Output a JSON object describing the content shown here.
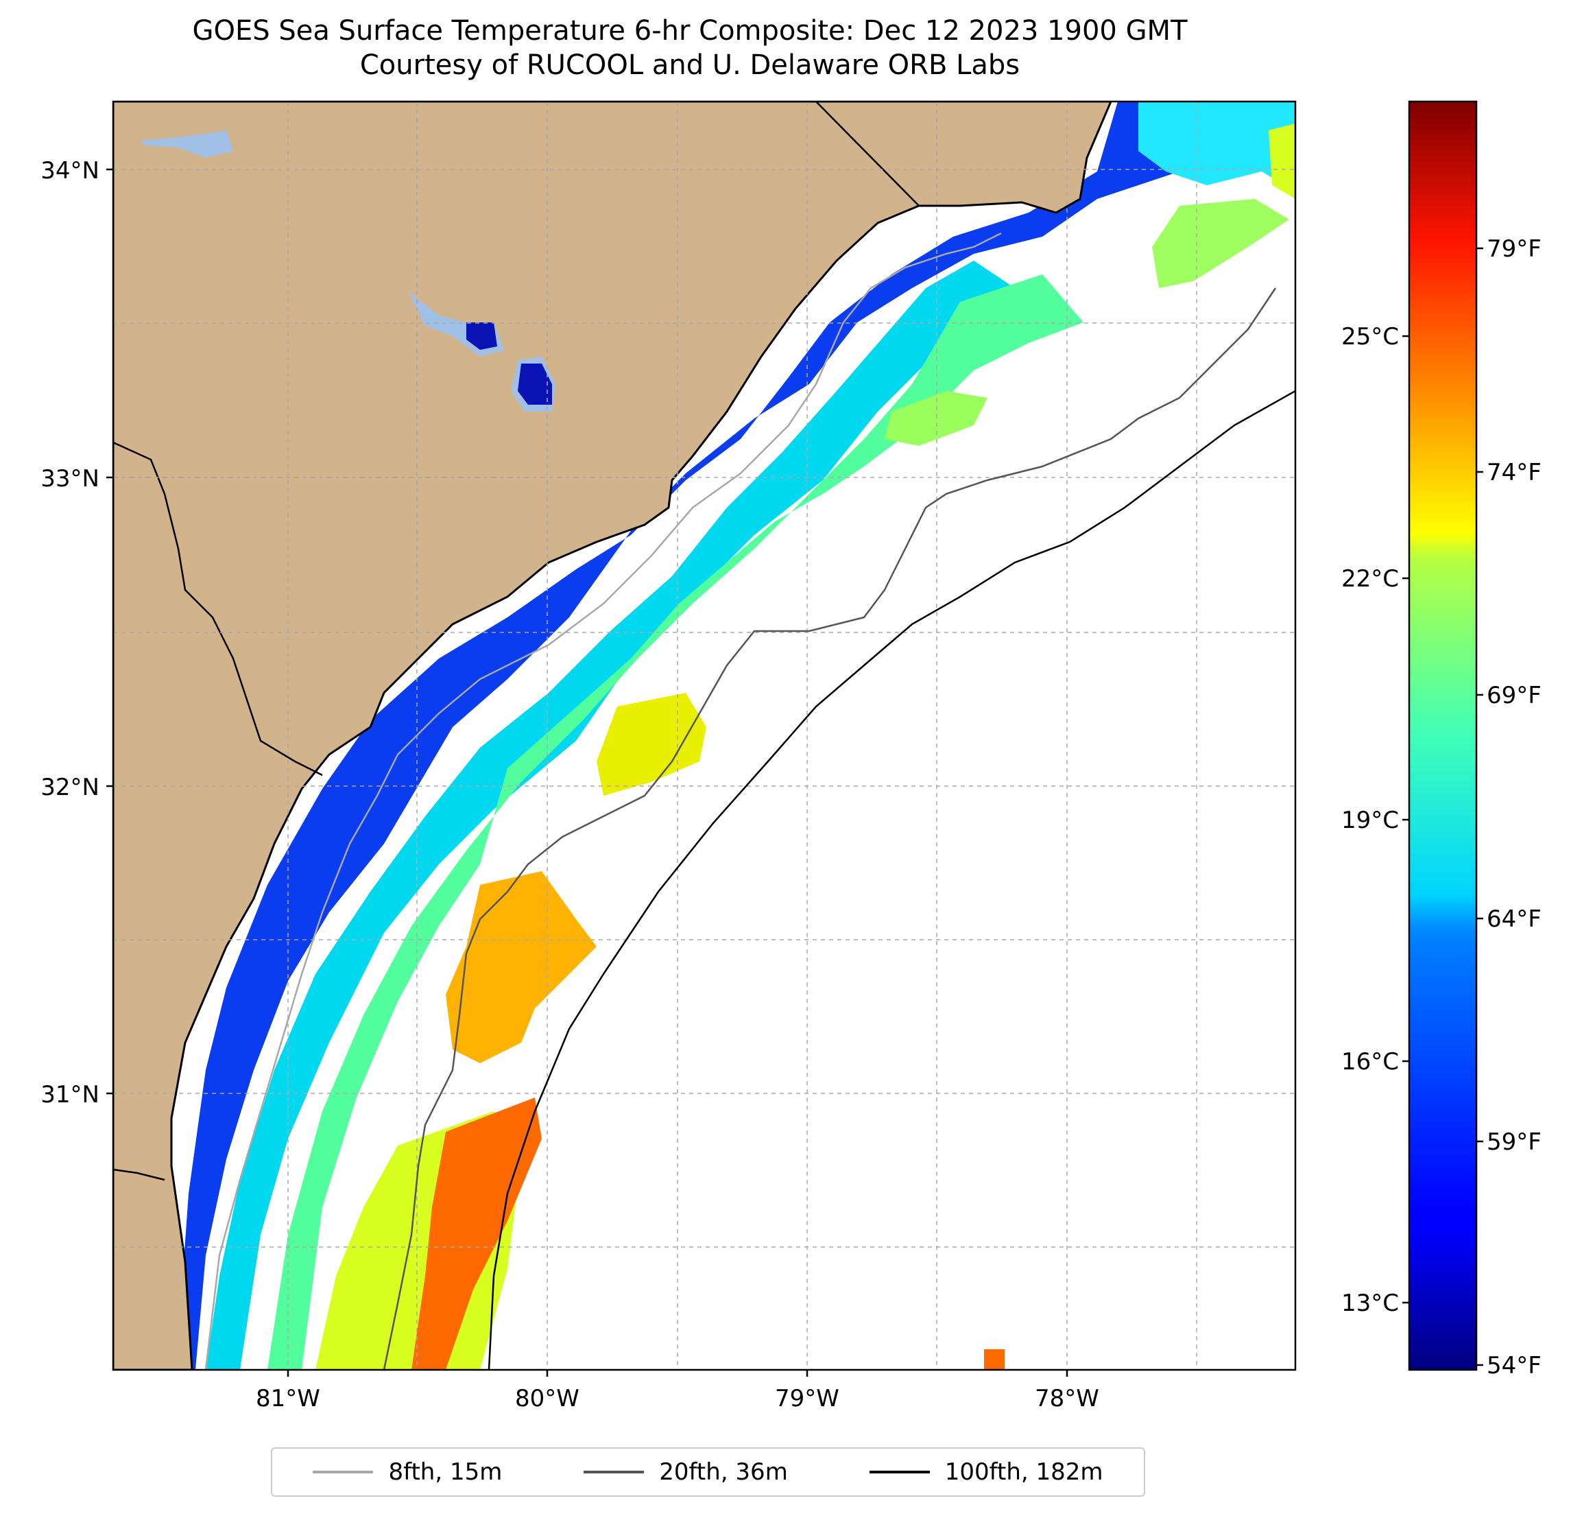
{
  "title": {
    "line1": "GOES Sea Surface Temperature 6-hr Composite: Dec 12 2023 1900 GMT",
    "line2": "Courtesy of RUCOOL and U. Delaware ORB Labs"
  },
  "map": {
    "lat_range": [
      30.1,
      34.2
    ],
    "lon_range": [
      -81.68,
      -77.13
    ],
    "lat_ticks": [
      {
        "value": 34,
        "label": "34°N"
      },
      {
        "value": 33,
        "label": "33°N"
      },
      {
        "value": 32,
        "label": "32°N"
      },
      {
        "value": 31,
        "label": "31°N"
      }
    ],
    "lon_ticks": [
      {
        "value": -81,
        "label": "81°W"
      },
      {
        "value": -80,
        "label": "80°W"
      },
      {
        "value": -79,
        "label": "79°W"
      },
      {
        "value": -78,
        "label": "78°W"
      }
    ],
    "colors": {
      "land": "#d2b48c",
      "water": "#a0bfe6",
      "grid": "#aaaaaa"
    }
  },
  "colorbar": {
    "celsius_ticks": [
      "25°C",
      "22°C",
      "19°C",
      "16°C",
      "13°C"
    ],
    "fahrenheit_ticks": [
      "79°F",
      "74°F",
      "69°F",
      "64°F",
      "59°F",
      "54°F"
    ]
  },
  "legend": {
    "items": [
      {
        "label": "8fth, 15m",
        "color": "#a8a8a8"
      },
      {
        "label": "20fth, 36m",
        "color": "#555555"
      },
      {
        "label": "100fth, 182m",
        "color": "#000000"
      }
    ]
  }
}
